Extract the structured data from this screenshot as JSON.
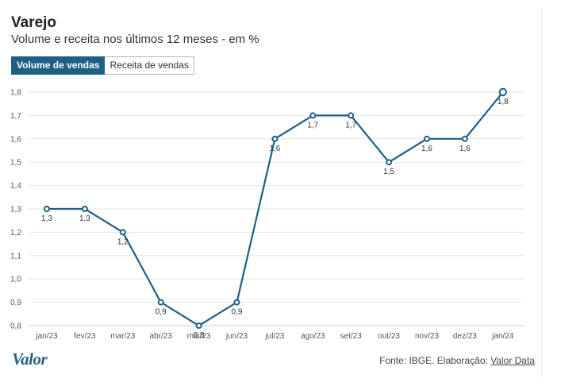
{
  "header": {
    "title": "Varejo",
    "subtitle": "Volume e receita nos últimos 12 meses - em %"
  },
  "tabs": [
    {
      "label": "Volume de vendas",
      "active": true
    },
    {
      "label": "Receita de vendas",
      "active": false
    }
  ],
  "chart_data": {
    "type": "line",
    "categories": [
      "jan/23",
      "fev/23",
      "mar/23",
      "abr/23",
      "mai/23",
      "jun/23",
      "jul/23",
      "ago/23",
      "set/23",
      "out/23",
      "nov/23",
      "dez/23",
      "jan/24"
    ],
    "series": [
      {
        "values": [
          1.3,
          1.3,
          1.2,
          0.9,
          0.8,
          0.9,
          1.6,
          1.7,
          1.7,
          1.5,
          1.6,
          1.6,
          1.8
        ]
      }
    ],
    "data_labels": [
      "1,3",
      "1,3",
      "1,2",
      "0,9",
      "0,8",
      "0,9",
      "1,6",
      "1,7",
      "1,7",
      "1,5",
      "1,6",
      "1,6",
      "1,8"
    ],
    "y_ticks": [
      "0,8",
      "0,9",
      "1,0",
      "1,1",
      "1,2",
      "1,3",
      "1,4",
      "1,5",
      "1,6",
      "1,7",
      "1,8"
    ],
    "ylim": [
      0.8,
      1.8
    ],
    "grid": true,
    "line_color": "#1e5f86"
  },
  "footer": {
    "logo": "Valor",
    "source_prefix": "Fonte: IBGE. Elaboração: ",
    "source_link": "Valor Data"
  }
}
